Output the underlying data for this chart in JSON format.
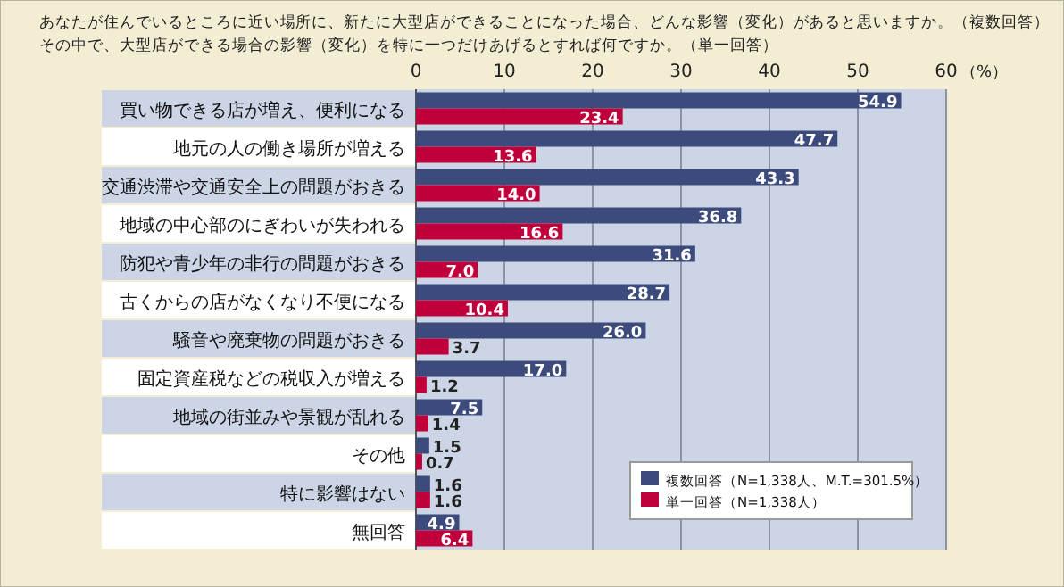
{
  "chart_data": {
    "type": "bar",
    "orientation": "horizontal",
    "title": "あなたが住んでいるところに近い場所に、新たに大型店ができることになった場合、どんな影響（変化）があると思いますか。（複数回答）",
    "subtitle": "その中で、大型店ができる場合の影響（変化）を特に一つだけあげるとすれば何ですか。（単一回答）",
    "xlabel": "（%）",
    "categories": [
      "買い物できる店が増え、便利になる",
      "地元の人の働き場所が増える",
      "交通渋滞や交通安全上の問題がおきる",
      "地域の中心部のにぎわいが失われる",
      "防犯や青少年の非行の問題がおきる",
      "古くからの店がなくなり不便になる",
      "騒音や廃棄物の問題がおきる",
      "固定資産税などの税収入が増える",
      "地域の街並みや景観が乱れる",
      "その他",
      "特に影響はない",
      "無回答"
    ],
    "series": [
      {
        "name": "複数回答（N=1,338人、M.T.=301.5%）",
        "color": "#3d4a7c",
        "values": [
          54.9,
          47.7,
          43.3,
          36.8,
          31.6,
          28.7,
          26.0,
          17.0,
          7.5,
          1.5,
          1.6,
          4.9
        ],
        "value_labels": [
          "54.9",
          "47.7",
          "43.3",
          "36.8",
          "31.6",
          "28.7",
          "26.0",
          "17.0",
          "7.5",
          "1.5",
          "1.6",
          "4.9"
        ]
      },
      {
        "name": "単一回答（N=1,338人）",
        "color": "#c0003a",
        "values": [
          23.4,
          13.6,
          14.0,
          16.6,
          7.0,
          10.4,
          3.7,
          1.2,
          1.4,
          0.7,
          1.6,
          6.4
        ],
        "value_labels": [
          "23.4",
          "13.6",
          "14.0",
          "16.6",
          "7.0",
          "10.4",
          "3.7",
          "1.2",
          "1.4",
          "0.7",
          "1.6",
          "6.4"
        ]
      }
    ],
    "xlim": [
      0,
      60
    ],
    "xticks": [
      0,
      10,
      20,
      30,
      40,
      50,
      60
    ],
    "grid": "x",
    "legend": "bottom right"
  }
}
